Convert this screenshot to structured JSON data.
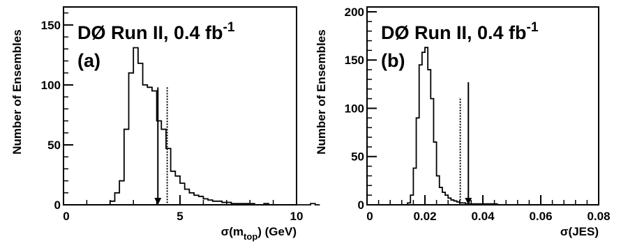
{
  "chart_data": [
    {
      "type": "histogram",
      "panel_label": "(a)",
      "header": {
        "main": "DØ Run II, 0.4 fb",
        "superscript": "-1"
      },
      "xlabel": {
        "prefix": "σ(m",
        "subscript": "top",
        "suffix": ") (GeV)"
      },
      "ylabel": "Number of Ensembles",
      "xlim": [
        0,
        10
      ],
      "ylim": [
        0,
        165
      ],
      "x_ticks": [
        0,
        5,
        10
      ],
      "y_ticks": [
        0,
        50,
        100,
        150
      ],
      "bin_width": 0.2,
      "bin_start": 2.0,
      "series": [
        {
          "style": "solid",
          "values": [
            3,
            10,
            20,
            63,
            110,
            131,
            118,
            100,
            98,
            95,
            70,
            63,
            47,
            28,
            24,
            18,
            13,
            10,
            8,
            7,
            5,
            4,
            3,
            3,
            2,
            2,
            1,
            1,
            1,
            1,
            1,
            0,
            0,
            1,
            0,
            0,
            0,
            0,
            0,
            0,
            0,
            0,
            0,
            1,
            0
          ]
        }
      ],
      "markers": [
        {
          "style": "solid",
          "x": 4.05,
          "top": 98,
          "arrow": true
        },
        {
          "style": "dotted",
          "x": 4.45,
          "top": 98,
          "arrow": false
        }
      ]
    },
    {
      "type": "histogram",
      "panel_label": "(b)",
      "header": {
        "main": "DØ Run II, 0.4 fb",
        "superscript": "-1"
      },
      "xlabel": {
        "prefix": "σ(JES)",
        "subscript": "",
        "suffix": ""
      },
      "ylabel": "Number of Ensembles",
      "xlim": [
        0,
        0.08
      ],
      "ylim": [
        0,
        205
      ],
      "x_ticks": [
        0,
        0.02,
        0.04,
        0.06,
        0.08
      ],
      "y_ticks": [
        0,
        50,
        100,
        150,
        200
      ],
      "bin_width": 0.001,
      "bin_start": 0.014,
      "series": [
        {
          "style": "solid",
          "values": [
            2,
            10,
            38,
            90,
            145,
            158,
            163,
            140,
            110,
            65,
            30,
            18,
            13,
            10,
            7,
            5,
            4,
            3,
            2,
            2,
            1,
            1,
            1,
            1,
            1,
            1,
            1,
            1,
            1,
            1,
            1
          ]
        }
      ],
      "markers": [
        {
          "style": "dotted",
          "x": 0.0322,
          "top": 110,
          "arrow": false
        },
        {
          "style": "solid",
          "x": 0.035,
          "top": 127,
          "arrow": true
        }
      ]
    }
  ]
}
